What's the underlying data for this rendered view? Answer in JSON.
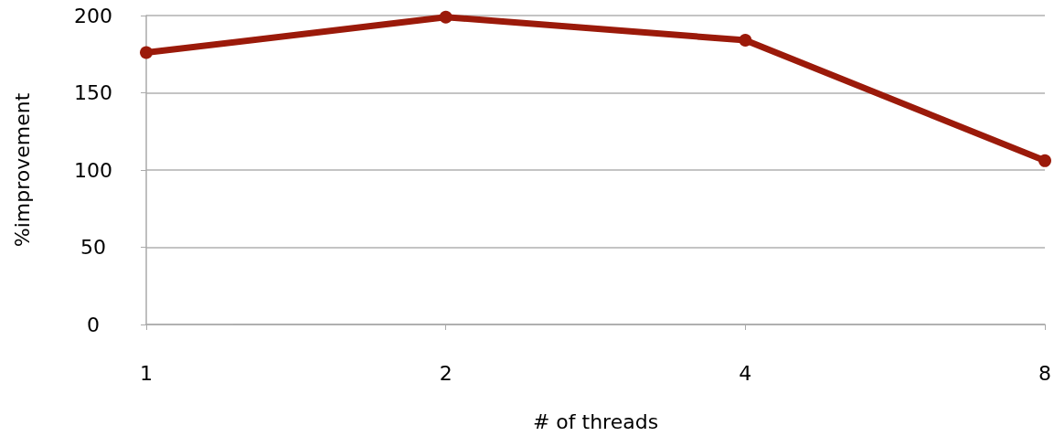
{
  "chart_data": {
    "type": "line",
    "xlabel": "# of threads",
    "ylabel": "%improvement",
    "categories": [
      "1",
      "2",
      "4",
      "8"
    ],
    "series": [
      {
        "color": "#9b1a0a",
        "values": [
          176,
          199,
          184,
          106
        ]
      }
    ],
    "ylim": [
      0,
      200
    ],
    "yticks": [
      0,
      50,
      100,
      150,
      200
    ],
    "grid": "y",
    "marker": "circle",
    "line_style": "solid"
  }
}
